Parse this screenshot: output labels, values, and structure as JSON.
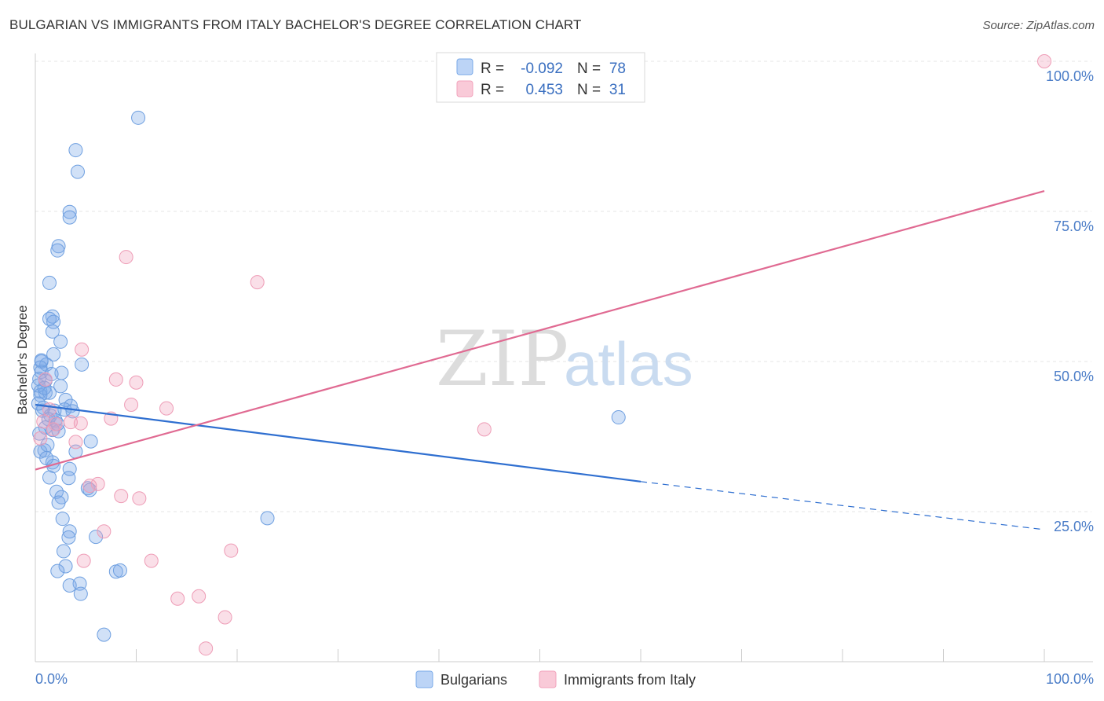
{
  "chart_data": {
    "type": "scatter",
    "title": "BULGARIAN VS IMMIGRANTS FROM ITALY BACHELOR'S DEGREE CORRELATION CHART",
    "source": "Source: ZipAtlas.com",
    "watermark": {
      "zip": "ZIP",
      "atlas": "atlas"
    },
    "ylabel": "Bachelor's Degree",
    "xlim": [
      0,
      100
    ],
    "ylim": [
      0,
      100
    ],
    "x_tick_labels": {
      "left": "0.0%",
      "right": "100.0%"
    },
    "y_ticks": [
      {
        "value": 25,
        "label": "25.0%"
      },
      {
        "value": 50,
        "label": "50.0%"
      },
      {
        "value": 75,
        "label": "75.0%"
      },
      {
        "value": 100,
        "label": "100.0%"
      }
    ],
    "colors": {
      "bulgarians": "#7aaae8",
      "italy": "#f2a3bc",
      "blue_line": "#2f6fd0",
      "pink_line": "#e06a92",
      "tick": "#4a7cc7"
    },
    "stats": [
      {
        "r_label": "R =",
        "r_value": "-0.092",
        "n_label": "N =",
        "n_value": "78"
      },
      {
        "r_label": "R =",
        "r_value": "0.453",
        "n_label": "N =",
        "n_value": "31"
      }
    ],
    "series": [
      {
        "name": "Bulgarians",
        "trend": {
          "x1": 0,
          "y1": 42.8,
          "x2": 60,
          "y2": 30.0,
          "dash_x2": 100,
          "dash_y2": 22.0
        },
        "points": [
          [
            10.2,
            90.6
          ],
          [
            4.0,
            85.2
          ],
          [
            4.2,
            81.6
          ],
          [
            3.4,
            74.9
          ],
          [
            3.4,
            74.0
          ],
          [
            2.3,
            69.2
          ],
          [
            2.2,
            68.5
          ],
          [
            1.4,
            63.1
          ],
          [
            1.7,
            57.5
          ],
          [
            1.4,
            57.1
          ],
          [
            1.8,
            56.6
          ],
          [
            1.7,
            55.0
          ],
          [
            2.5,
            53.3
          ],
          [
            1.8,
            51.2
          ],
          [
            0.6,
            50.0
          ],
          [
            1.1,
            49.5
          ],
          [
            0.5,
            49.0
          ],
          [
            0.6,
            48.3
          ],
          [
            4.6,
            49.5
          ],
          [
            2.6,
            48.1
          ],
          [
            0.4,
            47.1
          ],
          [
            1.0,
            46.8
          ],
          [
            2.5,
            45.9
          ],
          [
            0.5,
            45.0
          ],
          [
            1.0,
            44.8
          ],
          [
            1.4,
            44.8
          ],
          [
            0.5,
            44.4
          ],
          [
            3.0,
            43.6
          ],
          [
            3.5,
            42.6
          ],
          [
            0.8,
            42.3
          ],
          [
            0.7,
            41.8
          ],
          [
            1.9,
            41.8
          ],
          [
            1.5,
            41.0
          ],
          [
            1.3,
            40.4
          ],
          [
            2.0,
            40.2
          ],
          [
            1.0,
            39.0
          ],
          [
            1.7,
            38.6
          ],
          [
            2.3,
            38.4
          ],
          [
            5.5,
            36.7
          ],
          [
            0.9,
            35.2
          ],
          [
            0.5,
            35.0
          ],
          [
            4.0,
            35.0
          ],
          [
            1.7,
            33.2
          ],
          [
            1.8,
            32.6
          ],
          [
            3.4,
            32.1
          ],
          [
            1.4,
            30.7
          ],
          [
            3.3,
            30.6
          ],
          [
            5.2,
            28.9
          ],
          [
            5.4,
            28.6
          ],
          [
            2.1,
            28.3
          ],
          [
            2.6,
            27.4
          ],
          [
            2.3,
            26.5
          ],
          [
            2.7,
            23.8
          ],
          [
            23.0,
            23.9
          ],
          [
            3.4,
            21.7
          ],
          [
            3.3,
            20.7
          ],
          [
            6.0,
            20.8
          ],
          [
            2.8,
            18.4
          ],
          [
            3.0,
            15.9
          ],
          [
            2.2,
            15.1
          ],
          [
            8.0,
            15.0
          ],
          [
            8.4,
            15.2
          ],
          [
            4.4,
            13.0
          ],
          [
            3.4,
            12.7
          ],
          [
            4.5,
            11.3
          ],
          [
            6.8,
            4.5
          ],
          [
            57.8,
            40.7
          ],
          [
            0.3,
            46.0
          ],
          [
            0.3,
            43.0
          ],
          [
            0.4,
            38.0
          ],
          [
            1.2,
            36.1
          ],
          [
            2.9,
            42.0
          ],
          [
            1.6,
            47.9
          ],
          [
            0.9,
            45.6
          ],
          [
            3.7,
            41.7
          ],
          [
            2.2,
            39.6
          ],
          [
            0.6,
            50.2
          ],
          [
            1.1,
            33.9
          ]
        ]
      },
      {
        "name": "Immigrants from Italy",
        "trend": {
          "x1": 0,
          "y1": 32.0,
          "x2": 100,
          "y2": 78.4
        },
        "points": [
          [
            100,
            100
          ],
          [
            9.0,
            67.4
          ],
          [
            22.0,
            63.2
          ],
          [
            4.6,
            52.0
          ],
          [
            8.0,
            47.0
          ],
          [
            10.0,
            46.5
          ],
          [
            9.5,
            42.8
          ],
          [
            13.0,
            42.2
          ],
          [
            7.5,
            40.5
          ],
          [
            3.5,
            39.9
          ],
          [
            4.5,
            39.7
          ],
          [
            1.0,
            47.0
          ],
          [
            4.0,
            36.6
          ],
          [
            2.0,
            39.6
          ],
          [
            1.4,
            42.0
          ],
          [
            0.5,
            37.2
          ],
          [
            6.2,
            29.6
          ],
          [
            8.5,
            27.6
          ],
          [
            5.4,
            29.3
          ],
          [
            10.3,
            27.2
          ],
          [
            44.5,
            38.7
          ],
          [
            4.8,
            16.8
          ],
          [
            6.8,
            21.7
          ],
          [
            11.5,
            16.8
          ],
          [
            19.4,
            18.5
          ],
          [
            14.1,
            10.5
          ],
          [
            16.2,
            10.9
          ],
          [
            18.8,
            7.4
          ],
          [
            16.9,
            2.2
          ],
          [
            1.8,
            38.7
          ],
          [
            0.8,
            40.0
          ]
        ]
      }
    ]
  }
}
